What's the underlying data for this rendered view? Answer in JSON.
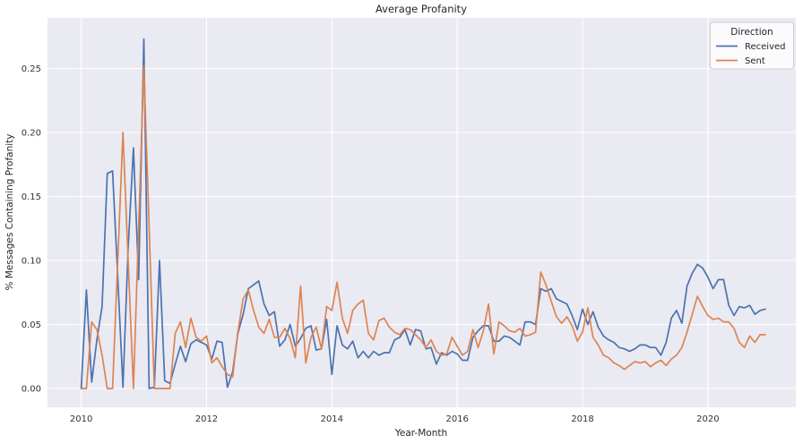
{
  "figure": {
    "title": "Average Profanity",
    "xlabel": "Year-Month",
    "ylabel": "% Messages Containing Profanity",
    "legend": {
      "title": "Direction",
      "items": [
        {
          "label": "Received",
          "color": "#4C72B0"
        },
        {
          "label": "Sent",
          "color": "#DD8452"
        }
      ]
    }
  },
  "chart_data": {
    "type": "line",
    "title": "Average Profanity",
    "xlabel": "Year-Month",
    "ylabel": "% Messages Containing Profanity",
    "grid": true,
    "plot_bg_color": "#EAEAF2",
    "grid_color": "#FFFFFF",
    "legend_position": "upper right",
    "legend_title": "Direction",
    "x_range": [
      "2010-01",
      "2020-12"
    ],
    "x_months": [
      "2010-01",
      "2010-02",
      "2010-03",
      "2010-04",
      "2010-05",
      "2010-06",
      "2010-07",
      "2010-08",
      "2010-09",
      "2010-10",
      "2010-11",
      "2010-12",
      "2011-01",
      "2011-02",
      "2011-03",
      "2011-04",
      "2011-05",
      "2011-06",
      "2011-07",
      "2011-08",
      "2011-09",
      "2011-10",
      "2011-11",
      "2011-12",
      "2012-01",
      "2012-02",
      "2012-03",
      "2012-04",
      "2012-05",
      "2012-06",
      "2012-07",
      "2012-08",
      "2012-09",
      "2012-10",
      "2012-11",
      "2012-12",
      "2013-01",
      "2013-02",
      "2013-03",
      "2013-04",
      "2013-05",
      "2013-06",
      "2013-07",
      "2013-08",
      "2013-09",
      "2013-10",
      "2013-11",
      "2013-12",
      "2014-01",
      "2014-02",
      "2014-03",
      "2014-04",
      "2014-05",
      "2014-06",
      "2014-07",
      "2014-08",
      "2014-09",
      "2014-10",
      "2014-11",
      "2014-12",
      "2015-01",
      "2015-02",
      "2015-03",
      "2015-04",
      "2015-05",
      "2015-06",
      "2015-07",
      "2015-08",
      "2015-09",
      "2015-10",
      "2015-11",
      "2015-12",
      "2016-01",
      "2016-02",
      "2016-03",
      "2016-04",
      "2016-05",
      "2016-06",
      "2016-07",
      "2016-08",
      "2016-09",
      "2016-10",
      "2016-11",
      "2016-12",
      "2017-01",
      "2017-02",
      "2017-03",
      "2017-04",
      "2017-05",
      "2017-06",
      "2017-07",
      "2017-08",
      "2017-09",
      "2017-10",
      "2017-11",
      "2017-12",
      "2018-01",
      "2018-02",
      "2018-03",
      "2018-04",
      "2018-05",
      "2018-06",
      "2018-07",
      "2018-08",
      "2018-09",
      "2018-10",
      "2018-11",
      "2018-12",
      "2019-01",
      "2019-02",
      "2019-03",
      "2019-04",
      "2019-05",
      "2019-06",
      "2019-07",
      "2019-08",
      "2019-09",
      "2019-10",
      "2019-11",
      "2019-12",
      "2020-01",
      "2020-02",
      "2020-03",
      "2020-04",
      "2020-05",
      "2020-06",
      "2020-07",
      "2020-08",
      "2020-09",
      "2020-10",
      "2020-11",
      "2020-12"
    ],
    "xtick_labels": [
      "2010",
      "2012",
      "2014",
      "2016",
      "2018",
      "2020"
    ],
    "xtick_month_indices": [
      0,
      24,
      48,
      72,
      96,
      120
    ],
    "ytick_labels": [
      "0.00",
      "0.05",
      "0.10",
      "0.15",
      "0.20",
      "0.25"
    ],
    "ytick_values": [
      0.0,
      0.05,
      0.1,
      0.15,
      0.2,
      0.25
    ],
    "ylim": [
      -0.014,
      0.287
    ],
    "series": [
      {
        "name": "Received",
        "color": "#4C72B0",
        "values": [
          0.0,
          0.077,
          0.005,
          0.038,
          0.064,
          0.168,
          0.17,
          0.087,
          0.001,
          0.11,
          0.188,
          0.085,
          0.273,
          0.0,
          0.001,
          0.1,
          0.006,
          0.004,
          0.019,
          0.033,
          0.021,
          0.035,
          0.038,
          0.036,
          0.034,
          0.023,
          0.037,
          0.036,
          0.001,
          0.013,
          0.043,
          0.058,
          0.078,
          0.081,
          0.084,
          0.066,
          0.057,
          0.06,
          0.033,
          0.038,
          0.05,
          0.033,
          0.039,
          0.047,
          0.049,
          0.03,
          0.031,
          0.054,
          0.011,
          0.049,
          0.034,
          0.031,
          0.037,
          0.024,
          0.029,
          0.024,
          0.029,
          0.026,
          0.028,
          0.028,
          0.038,
          0.04,
          0.046,
          0.034,
          0.046,
          0.045,
          0.031,
          0.032,
          0.019,
          0.028,
          0.026,
          0.029,
          0.027,
          0.022,
          0.022,
          0.04,
          0.045,
          0.049,
          0.049,
          0.037,
          0.037,
          0.041,
          0.04,
          0.037,
          0.034,
          0.052,
          0.052,
          0.05,
          0.078,
          0.076,
          0.078,
          0.07,
          0.068,
          0.066,
          0.057,
          0.046,
          0.062,
          0.05,
          0.06,
          0.048,
          0.041,
          0.038,
          0.036,
          0.032,
          0.031,
          0.029,
          0.031,
          0.034,
          0.034,
          0.032,
          0.032,
          0.026,
          0.036,
          0.055,
          0.061,
          0.051,
          0.08,
          0.09,
          0.097,
          0.094,
          0.087,
          0.078,
          0.085,
          0.085,
          0.065,
          0.057,
          0.064,
          0.063,
          0.065,
          0.058,
          0.061,
          0.062
        ]
      },
      {
        "name": "Sent",
        "color": "#DD8452",
        "values": [
          0.0,
          0.0,
          0.052,
          0.046,
          0.026,
          0.0,
          0.0,
          0.1,
          0.2,
          0.1,
          0.0,
          0.126,
          0.252,
          0.126,
          0.0,
          0.0,
          0.0,
          0.0,
          0.043,
          0.052,
          0.032,
          0.055,
          0.04,
          0.037,
          0.041,
          0.02,
          0.024,
          0.017,
          0.011,
          0.009,
          0.044,
          0.07,
          0.077,
          0.061,
          0.048,
          0.043,
          0.054,
          0.04,
          0.04,
          0.047,
          0.039,
          0.024,
          0.08,
          0.02,
          0.04,
          0.048,
          0.031,
          0.064,
          0.061,
          0.083,
          0.055,
          0.043,
          0.061,
          0.066,
          0.069,
          0.043,
          0.038,
          0.053,
          0.055,
          0.048,
          0.044,
          0.042,
          0.047,
          0.046,
          0.042,
          0.038,
          0.032,
          0.038,
          0.029,
          0.026,
          0.027,
          0.04,
          0.033,
          0.026,
          0.029,
          0.046,
          0.032,
          0.045,
          0.066,
          0.027,
          0.052,
          0.049,
          0.045,
          0.044,
          0.047,
          0.041,
          0.042,
          0.044,
          0.091,
          0.081,
          0.068,
          0.056,
          0.051,
          0.056,
          0.049,
          0.037,
          0.044,
          0.063,
          0.04,
          0.034,
          0.026,
          0.024,
          0.02,
          0.018,
          0.015,
          0.018,
          0.021,
          0.02,
          0.021,
          0.017,
          0.02,
          0.022,
          0.018,
          0.023,
          0.026,
          0.032,
          0.044,
          0.058,
          0.072,
          0.064,
          0.057,
          0.054,
          0.055,
          0.052,
          0.052,
          0.047,
          0.036,
          0.032,
          0.041,
          0.036,
          0.042,
          0.042
        ]
      }
    ]
  }
}
